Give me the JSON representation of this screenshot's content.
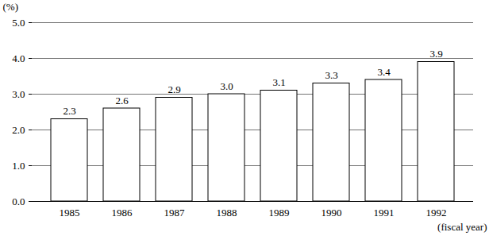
{
  "chart_data": {
    "type": "bar",
    "categories": [
      "1985",
      "1986",
      "1987",
      "1988",
      "1989",
      "1990",
      "1991",
      "1992"
    ],
    "values": [
      2.3,
      2.6,
      2.9,
      3.0,
      3.1,
      3.3,
      3.4,
      3.9
    ],
    "value_labels": [
      "2.3",
      "2.6",
      "2.9",
      "3.0",
      "3.1",
      "3.3",
      "3.4",
      "3.9"
    ],
    "color": "#ffffff",
    "ylabel": "(%)",
    "xlabel": "(fiscal year)",
    "ylim": [
      0,
      5
    ],
    "yticks": [
      0,
      1,
      2,
      3,
      4,
      5
    ],
    "grid": true,
    "data_labels": true
  }
}
